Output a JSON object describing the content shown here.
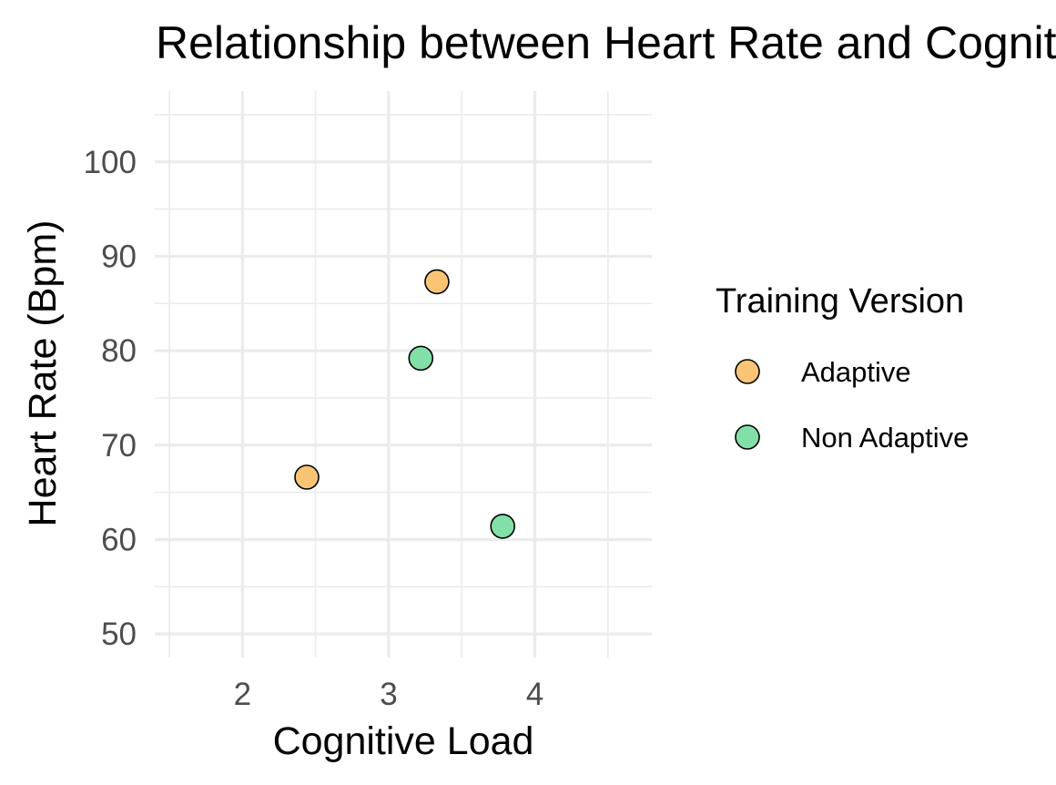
{
  "chart_data": {
    "type": "scatter",
    "title": "Relationship between Heart Rate and Cognitive Load",
    "xlabel": "Cognitive Load",
    "ylabel": "Heart Rate (Bpm)",
    "xlim": [
      1.4,
      4.8
    ],
    "ylim": [
      47.5,
      107.5
    ],
    "x_ticks": [
      2,
      3,
      4
    ],
    "y_ticks": [
      50,
      60,
      70,
      80,
      90,
      100
    ],
    "grid": true,
    "legend": {
      "title": "Training Version",
      "position": "right"
    },
    "series": [
      {
        "name": "Adaptive",
        "color": "#F9C474",
        "points": [
          {
            "x": 2.44,
            "y": 66.6
          },
          {
            "x": 3.33,
            "y": 87.3
          }
        ]
      },
      {
        "name": "Non Adaptive",
        "color": "#82DFA8",
        "points": [
          {
            "x": 3.22,
            "y": 79.2
          },
          {
            "x": 3.78,
            "y": 61.4
          }
        ]
      }
    ]
  }
}
